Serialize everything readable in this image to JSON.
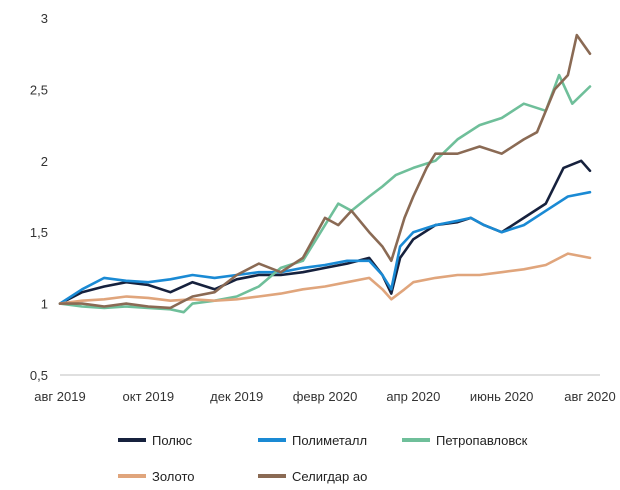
{
  "chart_data": {
    "type": "line",
    "title": "",
    "xlabel": "",
    "ylabel": "",
    "ylim": [
      0.5,
      3
    ],
    "y_ticks": [
      "0,5",
      "1",
      "1,5",
      "2",
      "2,5",
      "3"
    ],
    "y_tick_values": [
      0.5,
      1,
      1.5,
      2,
      2.5,
      3
    ],
    "x_range": [
      0,
      12
    ],
    "x_ticks": [
      "авг 2019",
      "окт 2019",
      "дек 2019",
      "февр 2020",
      "апр 2020",
      "июнь 2020",
      "авг 2020"
    ],
    "x_tick_values": [
      0,
      2,
      4,
      6,
      8,
      10,
      12
    ],
    "grid": false,
    "legend_position": "bottom",
    "series": [
      {
        "name": "Полюс",
        "color": "#16213d",
        "points": [
          [
            0,
            1.0
          ],
          [
            0.5,
            1.08
          ],
          [
            1,
            1.12
          ],
          [
            1.5,
            1.15
          ],
          [
            2,
            1.13
          ],
          [
            2.5,
            1.08
          ],
          [
            3,
            1.15
          ],
          [
            3.5,
            1.1
          ],
          [
            4,
            1.17
          ],
          [
            4.5,
            1.2
          ],
          [
            5,
            1.2
          ],
          [
            5.5,
            1.22
          ],
          [
            6,
            1.25
          ],
          [
            6.5,
            1.28
          ],
          [
            7,
            1.32
          ],
          [
            7.3,
            1.2
          ],
          [
            7.5,
            1.07
          ],
          [
            7.7,
            1.32
          ],
          [
            8,
            1.45
          ],
          [
            8.5,
            1.55
          ],
          [
            9,
            1.57
          ],
          [
            9.3,
            1.6
          ],
          [
            9.6,
            1.55
          ],
          [
            10,
            1.5
          ],
          [
            10.5,
            1.6
          ],
          [
            11,
            1.7
          ],
          [
            11.4,
            1.95
          ],
          [
            11.8,
            2.0
          ],
          [
            12,
            1.93
          ]
        ]
      },
      {
        "name": "Полиметалл",
        "color": "#1a8ad4",
        "points": [
          [
            0,
            1.0
          ],
          [
            0.5,
            1.1
          ],
          [
            1,
            1.18
          ],
          [
            1.5,
            1.16
          ],
          [
            2,
            1.15
          ],
          [
            2.5,
            1.17
          ],
          [
            3,
            1.2
          ],
          [
            3.5,
            1.18
          ],
          [
            4,
            1.2
          ],
          [
            4.5,
            1.22
          ],
          [
            5,
            1.22
          ],
          [
            5.5,
            1.25
          ],
          [
            6,
            1.27
          ],
          [
            6.5,
            1.3
          ],
          [
            7,
            1.3
          ],
          [
            7.3,
            1.2
          ],
          [
            7.5,
            1.1
          ],
          [
            7.7,
            1.4
          ],
          [
            8,
            1.5
          ],
          [
            8.5,
            1.55
          ],
          [
            9,
            1.58
          ],
          [
            9.3,
            1.6
          ],
          [
            9.6,
            1.55
          ],
          [
            10,
            1.5
          ],
          [
            10.5,
            1.55
          ],
          [
            11,
            1.65
          ],
          [
            11.5,
            1.75
          ],
          [
            12,
            1.78
          ]
        ]
      },
      {
        "name": "Петропавловск",
        "color": "#6fbf9a",
        "points": [
          [
            0,
            1.0
          ],
          [
            0.5,
            0.98
          ],
          [
            1,
            0.97
          ],
          [
            1.5,
            0.98
          ],
          [
            2,
            0.97
          ],
          [
            2.5,
            0.96
          ],
          [
            2.8,
            0.94
          ],
          [
            3,
            1.0
          ],
          [
            3.5,
            1.02
          ],
          [
            4,
            1.05
          ],
          [
            4.5,
            1.12
          ],
          [
            5,
            1.25
          ],
          [
            5.5,
            1.3
          ],
          [
            5.8,
            1.45
          ],
          [
            6,
            1.55
          ],
          [
            6.3,
            1.7
          ],
          [
            6.6,
            1.65
          ],
          [
            7,
            1.75
          ],
          [
            7.3,
            1.82
          ],
          [
            7.6,
            1.9
          ],
          [
            8,
            1.95
          ],
          [
            8.5,
            2.0
          ],
          [
            9,
            2.15
          ],
          [
            9.5,
            2.25
          ],
          [
            10,
            2.3
          ],
          [
            10.5,
            2.4
          ],
          [
            11,
            2.35
          ],
          [
            11.3,
            2.6
          ],
          [
            11.6,
            2.4
          ],
          [
            12,
            2.52
          ]
        ]
      },
      {
        "name": "Золото",
        "color": "#e0a57c",
        "points": [
          [
            0,
            1.0
          ],
          [
            0.5,
            1.02
          ],
          [
            1,
            1.03
          ],
          [
            1.5,
            1.05
          ],
          [
            2,
            1.04
          ],
          [
            2.5,
            1.02
          ],
          [
            3,
            1.03
          ],
          [
            3.5,
            1.02
          ],
          [
            4,
            1.03
          ],
          [
            4.5,
            1.05
          ],
          [
            5,
            1.07
          ],
          [
            5.5,
            1.1
          ],
          [
            6,
            1.12
          ],
          [
            6.5,
            1.15
          ],
          [
            7,
            1.18
          ],
          [
            7.3,
            1.1
          ],
          [
            7.5,
            1.03
          ],
          [
            7.8,
            1.1
          ],
          [
            8,
            1.15
          ],
          [
            8.5,
            1.18
          ],
          [
            9,
            1.2
          ],
          [
            9.5,
            1.2
          ],
          [
            10,
            1.22
          ],
          [
            10.5,
            1.24
          ],
          [
            11,
            1.27
          ],
          [
            11.5,
            1.35
          ],
          [
            12,
            1.32
          ]
        ]
      },
      {
        "name": "Селигдар ао",
        "color": "#8a6a54",
        "points": [
          [
            0,
            1.0
          ],
          [
            0.5,
            1.0
          ],
          [
            1,
            0.98
          ],
          [
            1.5,
            1.0
          ],
          [
            2,
            0.98
          ],
          [
            2.5,
            0.97
          ],
          [
            3,
            1.05
          ],
          [
            3.5,
            1.08
          ],
          [
            4,
            1.2
          ],
          [
            4.5,
            1.28
          ],
          [
            5,
            1.22
          ],
          [
            5.5,
            1.32
          ],
          [
            6,
            1.6
          ],
          [
            6.3,
            1.55
          ],
          [
            6.6,
            1.65
          ],
          [
            7,
            1.5
          ],
          [
            7.3,
            1.4
          ],
          [
            7.5,
            1.3
          ],
          [
            7.8,
            1.6
          ],
          [
            8,
            1.75
          ],
          [
            8.3,
            1.95
          ],
          [
            8.5,
            2.05
          ],
          [
            9,
            2.05
          ],
          [
            9.5,
            2.1
          ],
          [
            10,
            2.05
          ],
          [
            10.5,
            2.15
          ],
          [
            10.8,
            2.2
          ],
          [
            11.2,
            2.5
          ],
          [
            11.5,
            2.6
          ],
          [
            11.7,
            2.88
          ],
          [
            12,
            2.75
          ]
        ]
      }
    ]
  }
}
